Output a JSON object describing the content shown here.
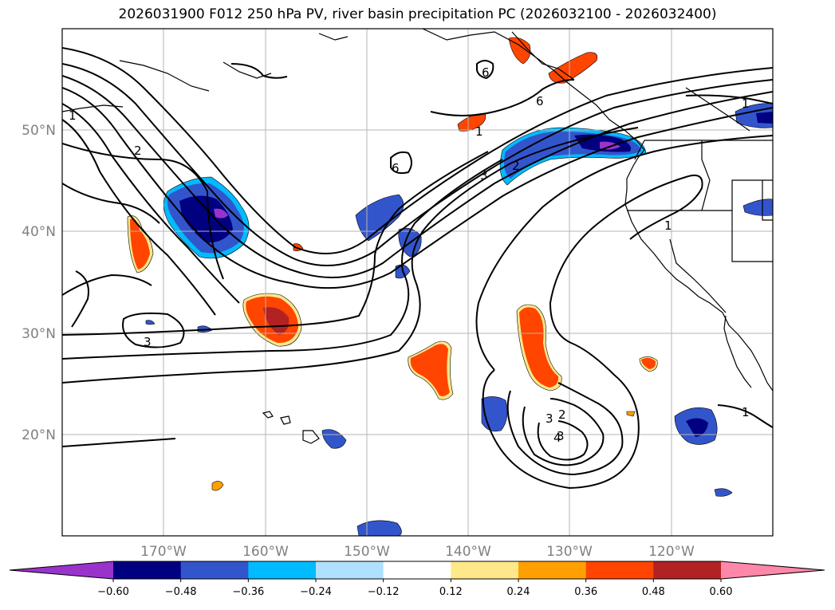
{
  "title": "2026031900 F012 250 hPa PV, river basin precipitation PC (2026032100 - 2026032400)",
  "lat_labels": [
    "50°N",
    "40°N",
    "30°N",
    "20°N"
  ],
  "lon_labels": [
    "170°W",
    "160°W",
    "150°W",
    "140°W",
    "130°W",
    "120°W"
  ],
  "contour_labels": [
    "1",
    "2",
    "3",
    "6",
    "6",
    "6",
    "1",
    "3",
    "2",
    "1",
    "1",
    "3",
    "3",
    "2",
    "4",
    "1"
  ],
  "colorbar": {
    "ticks": [
      "−0.60",
      "−0.48",
      "−0.36",
      "−0.24",
      "−0.12",
      "0.12",
      "0.24",
      "0.36",
      "0.48",
      "0.60"
    ],
    "colors": [
      "#9933cc",
      "#000080",
      "#3355cc",
      "#00bbff",
      "#b0e0ff",
      "#ffffff",
      "#ffe88a",
      "#ffa000",
      "#ff4500",
      "#b22222",
      "#ff88aa"
    ]
  }
}
